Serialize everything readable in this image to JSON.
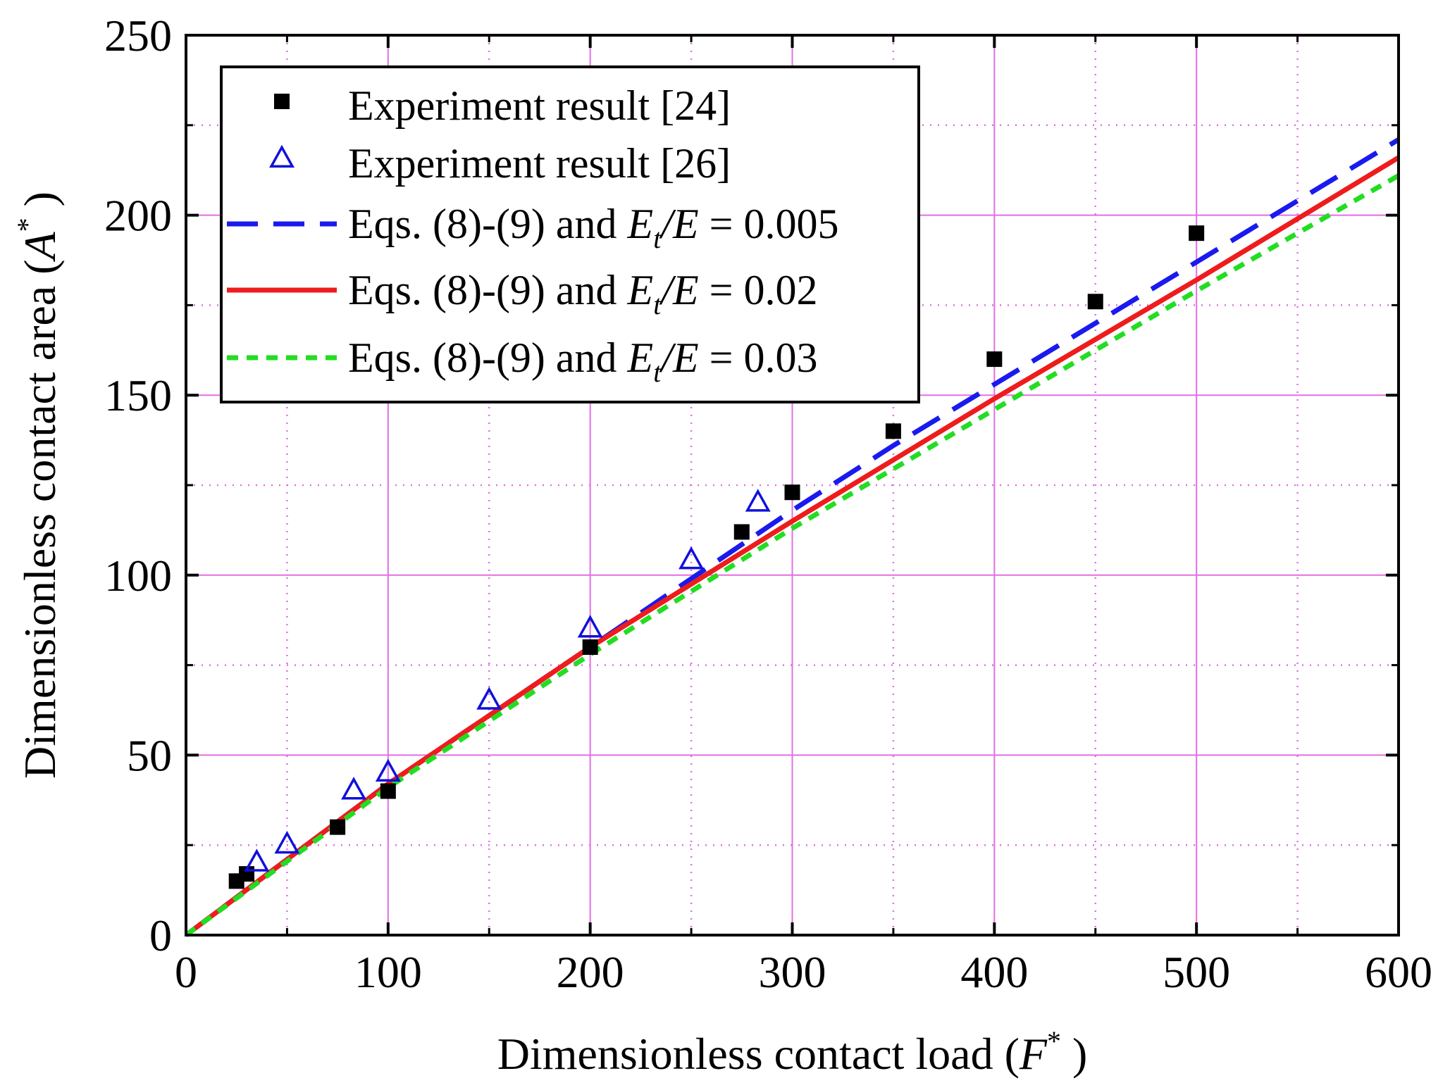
{
  "chart_data": {
    "type": "scatter",
    "title": "",
    "xlabel": {
      "text": "Dimensionless contact load (",
      "symbol": "F",
      "sup": "*",
      "close": " )"
    },
    "ylabel": {
      "text": "Dimensionless contact area (",
      "symbol": "A",
      "sup": "*",
      "close": " )"
    },
    "xlim": [
      0,
      600
    ],
    "ylim": [
      0,
      250
    ],
    "xticks": [
      0,
      100,
      200,
      300,
      400,
      500,
      600
    ],
    "yticks": [
      0,
      50,
      100,
      150,
      200,
      250
    ],
    "x_major_grid": [
      100,
      200,
      300,
      400,
      500
    ],
    "x_minor_grid": [
      50,
      150,
      250,
      350,
      450,
      550
    ],
    "y_major_grid": [
      50,
      100,
      150,
      200
    ],
    "y_minor_grid": [
      25,
      75,
      125,
      175,
      225
    ],
    "grid": true,
    "grid_color": "#e36fe3",
    "legend_position": "top-left",
    "series": [
      {
        "name": "Experiment result [24]",
        "kind": "markers",
        "marker": "square",
        "color": "#000000",
        "points": [
          [
            25,
            15
          ],
          [
            30,
            17
          ],
          [
            75,
            30
          ],
          [
            100,
            40
          ],
          [
            200,
            80
          ],
          [
            275,
            112
          ],
          [
            300,
            123
          ],
          [
            350,
            140
          ],
          [
            400,
            160
          ],
          [
            450,
            176
          ],
          [
            500,
            195
          ]
        ]
      },
      {
        "name": "Experiment result [26]",
        "kind": "markers",
        "marker": "triangle",
        "color": "#1010dd",
        "points": [
          [
            35,
            20
          ],
          [
            50,
            25
          ],
          [
            83,
            40
          ],
          [
            100,
            45
          ],
          [
            150,
            65
          ],
          [
            200,
            85
          ],
          [
            250,
            104
          ],
          [
            283,
            120
          ]
        ]
      },
      {
        "name": "Eqs. (8)-(9) and E_t/E = 0.005",
        "legend": {
          "prefix": "Eqs. (8)-(9) and ",
          "e1": "E",
          "sub": "t",
          "slash": "/",
          "e2": "E",
          "suffix": " = 0.005"
        },
        "kind": "line",
        "dash": "long",
        "color": "#1a1aee",
        "points": [
          [
            0,
            0
          ],
          [
            100,
            42
          ],
          [
            200,
            80
          ],
          [
            300,
            118
          ],
          [
            350,
            136
          ],
          [
            400,
            153
          ],
          [
            500,
            187
          ],
          [
            600,
            221
          ]
        ]
      },
      {
        "name": "Eqs. (8)-(9) and E_t/E = 0.02",
        "legend": {
          "prefix": "Eqs. (8)-(9) and ",
          "e1": "E",
          "sub": "t",
          "slash": "/",
          "e2": "E",
          "suffix": " = 0.02"
        },
        "kind": "line",
        "dash": "solid",
        "color": "#ee1c1c",
        "points": [
          [
            0,
            0
          ],
          [
            100,
            42
          ],
          [
            200,
            80
          ],
          [
            300,
            115
          ],
          [
            400,
            149
          ],
          [
            500,
            182
          ],
          [
            600,
            216
          ]
        ]
      },
      {
        "name": "Eqs. (8)-(9) and E_t/E = 0.03",
        "legend": {
          "prefix": "Eqs. (8)-(9) and ",
          "e1": "E",
          "sub": "t",
          "slash": "/",
          "e2": "E",
          "suffix": " = 0.03"
        },
        "kind": "line",
        "dash": "short",
        "color": "#22dd22",
        "points": [
          [
            0,
            0
          ],
          [
            100,
            41
          ],
          [
            200,
            78
          ],
          [
            300,
            113
          ],
          [
            400,
            146
          ],
          [
            500,
            179
          ],
          [
            600,
            211
          ]
        ]
      }
    ]
  }
}
